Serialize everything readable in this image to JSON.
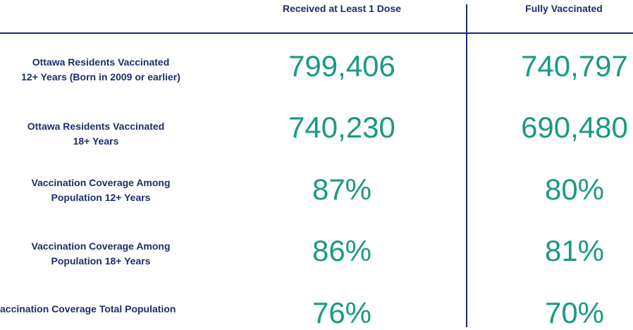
{
  "columns": {
    "dose": "Received at Least 1 Dose",
    "full": "Fully Vaccinated"
  },
  "rows": [
    {
      "label_line1": "Ottawa Residents Vaccinated",
      "label_line2": "12+ Years (Born in 2009 or earlier)",
      "dose": "799,406",
      "full": "740,797"
    },
    {
      "label_line1": "Ottawa Residents Vaccinated",
      "label_line2": "18+ Years",
      "dose": "740,230",
      "full": "690,480"
    },
    {
      "label_line1": "Vaccination Coverage Among",
      "label_line2": "Population 12+ Years",
      "dose": "87%",
      "full": "80%"
    },
    {
      "label_line1": "Vaccination Coverage Among",
      "label_line2": "Population 18+ Years",
      "dose": "86%",
      "full": "81%"
    },
    {
      "label_line1": "accination Coverage Total Population",
      "label_line2": "",
      "dose": "76%",
      "full": "70%"
    }
  ],
  "colors": {
    "label": "#1f2d6b",
    "value": "#1a9a82",
    "rule": "#1f2d6b"
  }
}
